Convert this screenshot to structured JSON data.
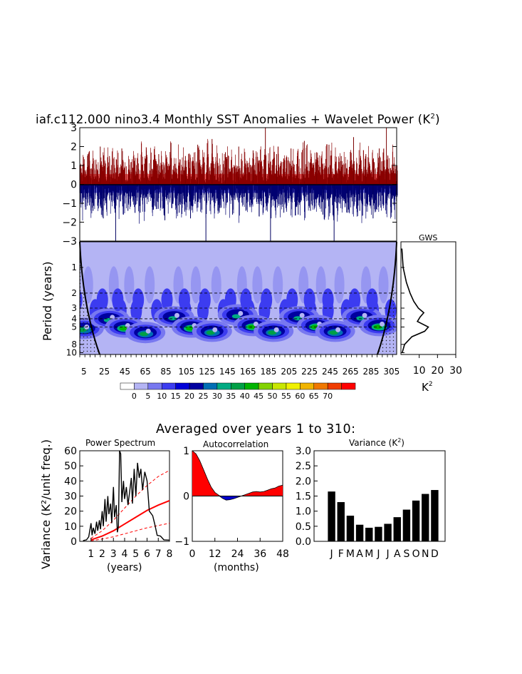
{
  "title": {
    "main": "iaf.c112.000 nino3.4 Monthly SST Anomalies + Wavelet Power (K",
    "sup": "2",
    "close": ")"
  },
  "bottom_title": "Averaged over years 1 to 310:",
  "colors": {
    "pos": "#ff0000",
    "neg": "#0000cc",
    "bg_power": "#b4b4f4",
    "sig_red": "#ff0000"
  },
  "chart_data": [
    {
      "id": "timeseries",
      "type": "line",
      "ylabel": "",
      "ylim": [
        -3,
        3
      ],
      "yticks": [
        3,
        2,
        1,
        0,
        -1,
        -2,
        -3
      ],
      "ytick_labels": [
        "3",
        "2",
        "1",
        "0",
        "−1",
        "−2",
        "−3"
      ],
      "xlim": [
        1,
        310
      ],
      "spikes": [
        {
          "x": 9,
          "v": 1.6
        },
        {
          "x": 14,
          "v": -1.4
        },
        {
          "x": 21,
          "v": 2.0
        },
        {
          "x": 24,
          "v": -1.8
        },
        {
          "x": 30,
          "v": 1.5
        },
        {
          "x": 36,
          "v": -3.0
        },
        {
          "x": 42,
          "v": 1.9
        },
        {
          "x": 48,
          "v": -1.4
        },
        {
          "x": 55,
          "v": 1.4
        },
        {
          "x": 60,
          "v": -1.5
        },
        {
          "x": 66,
          "v": 1.8
        },
        {
          "x": 73,
          "v": -1.2
        },
        {
          "x": 78,
          "v": 1.6
        },
        {
          "x": 84,
          "v": -1.9
        },
        {
          "x": 90,
          "v": 2.2
        },
        {
          "x": 98,
          "v": -1.5
        },
        {
          "x": 104,
          "v": 1.5
        },
        {
          "x": 109,
          "v": -1.8
        },
        {
          "x": 116,
          "v": 2.1
        },
        {
          "x": 124,
          "v": -3.0
        },
        {
          "x": 130,
          "v": 2.4
        },
        {
          "x": 137,
          "v": -1.5
        },
        {
          "x": 143,
          "v": 1.7
        },
        {
          "x": 150,
          "v": -1.6
        },
        {
          "x": 156,
          "v": 2.0
        },
        {
          "x": 163,
          "v": -1.4
        },
        {
          "x": 170,
          "v": 1.8
        },
        {
          "x": 176,
          "v": -1.7
        },
        {
          "x": 182,
          "v": 3.0
        },
        {
          "x": 187,
          "v": -3.0
        },
        {
          "x": 193,
          "v": 1.6
        },
        {
          "x": 200,
          "v": -1.5
        },
        {
          "x": 207,
          "v": 1.9
        },
        {
          "x": 214,
          "v": -1.6
        },
        {
          "x": 220,
          "v": 2.3
        },
        {
          "x": 226,
          "v": -1.4
        },
        {
          "x": 232,
          "v": 1.7
        },
        {
          "x": 238,
          "v": -1.6
        },
        {
          "x": 244,
          "v": 2.1
        },
        {
          "x": 249,
          "v": -3.0
        },
        {
          "x": 256,
          "v": 1.5
        },
        {
          "x": 262,
          "v": -1.5
        },
        {
          "x": 268,
          "v": 2.5
        },
        {
          "x": 274,
          "v": -1.4
        },
        {
          "x": 280,
          "v": 1.6
        },
        {
          "x": 287,
          "v": -1.8
        },
        {
          "x": 293,
          "v": 1.9
        },
        {
          "x": 300,
          "v": 3.0
        },
        {
          "x": 305,
          "v": -1.5
        }
      ]
    },
    {
      "id": "wavelet",
      "type": "heatmap",
      "ylabel": "Period (years)",
      "period_ticks": [
        "1",
        "2",
        "3",
        "4",
        "5",
        "8",
        "10"
      ],
      "period_values": [
        1,
        2,
        3,
        4,
        5,
        8,
        10
      ],
      "xtick_labels": [
        "5",
        "25",
        "45",
        "65",
        "85",
        "105",
        "125",
        "145",
        "165",
        "185",
        "205",
        "225",
        "245",
        "265",
        "285",
        "305"
      ],
      "xtick_values": [
        5,
        25,
        45,
        65,
        85,
        105,
        125,
        145,
        165,
        185,
        205,
        225,
        245,
        265,
        285,
        305
      ],
      "xlim": [
        1,
        310
      ],
      "ylim_log": [
        0.5,
        10.5
      ],
      "dashed_periods": [
        2,
        3,
        4,
        5
      ],
      "blob_centers": [
        {
          "year": 5,
          "period": 5.2,
          "power": 35
        },
        {
          "year": 30,
          "period": 4.0,
          "power": 30
        },
        {
          "year": 45,
          "period": 5.0,
          "power": 40
        },
        {
          "year": 65,
          "period": 5.8,
          "power": 35
        },
        {
          "year": 93,
          "period": 3.8,
          "power": 30
        },
        {
          "year": 110,
          "period": 5.0,
          "power": 40
        },
        {
          "year": 130,
          "period": 5.6,
          "power": 35
        },
        {
          "year": 155,
          "period": 3.6,
          "power": 30
        },
        {
          "year": 170,
          "period": 4.8,
          "power": 40
        },
        {
          "year": 190,
          "period": 5.6,
          "power": 35
        },
        {
          "year": 215,
          "period": 3.8,
          "power": 30
        },
        {
          "year": 232,
          "period": 4.8,
          "power": 40
        },
        {
          "year": 250,
          "period": 5.6,
          "power": 35
        },
        {
          "year": 276,
          "period": 3.8,
          "power": 30
        },
        {
          "year": 293,
          "period": 4.8,
          "power": 40
        }
      ]
    },
    {
      "id": "gws",
      "type": "line",
      "title": "GWS",
      "xlabel": "K",
      "xlabel_sup": "2",
      "xtick_labels": [
        "10",
        "20",
        "30"
      ],
      "xtick_values": [
        10,
        20,
        30
      ],
      "xlim": [
        0,
        30
      ],
      "points": [
        {
          "period": 0.6,
          "v": 0.5
        },
        {
          "period": 1.0,
          "v": 1.2
        },
        {
          "period": 1.5,
          "v": 3.0
        },
        {
          "period": 2.0,
          "v": 5.0
        },
        {
          "period": 2.5,
          "v": 7.0
        },
        {
          "period": 3.0,
          "v": 9.5
        },
        {
          "period": 3.4,
          "v": 12.5
        },
        {
          "period": 3.8,
          "v": 10.5
        },
        {
          "period": 4.3,
          "v": 9.0
        },
        {
          "period": 5.0,
          "v": 15.0
        },
        {
          "period": 5.6,
          "v": 13.0
        },
        {
          "period": 6.5,
          "v": 6.0
        },
        {
          "period": 8.0,
          "v": 2.0
        },
        {
          "period": 10.0,
          "v": 0.7
        }
      ]
    },
    {
      "id": "legend",
      "type": "colorbar",
      "labels": [
        "0",
        "5",
        "10",
        "15",
        "20",
        "25",
        "30",
        "35",
        "40",
        "45",
        "50",
        "55",
        "60",
        "65",
        "70"
      ],
      "colors": [
        "#ffffff",
        "#b4b4f4",
        "#7878f0",
        "#3c3cf0",
        "#0000d8",
        "#0000a0",
        "#006eb4",
        "#00aa82",
        "#00a046",
        "#00b400",
        "#82d200",
        "#c8e600",
        "#f0f000",
        "#f0b400",
        "#f07800",
        "#f03c00",
        "#ff0000"
      ]
    },
    {
      "id": "power_spectrum",
      "type": "line",
      "title": "Power Spectrum",
      "ylabel": "Variance (K²/unit freq.)",
      "xlabel": "(years)",
      "xtick_labels": [
        "1",
        "2",
        "3",
        "4",
        "5",
        "6",
        "7",
        "8"
      ],
      "xtick_values": [
        1,
        2,
        3,
        4,
        5,
        6,
        7,
        8
      ],
      "ytick_labels": [
        "0",
        "10",
        "20",
        "30",
        "40",
        "50",
        "60"
      ],
      "ytick_values": [
        0,
        10,
        20,
        30,
        40,
        50,
        60
      ],
      "xlim": [
        0,
        8
      ],
      "ylim": [
        0,
        60
      ],
      "spectrum": [
        [
          0.3,
          0.5
        ],
        [
          0.6,
          1.0
        ],
        [
          0.8,
          3.0
        ],
        [
          1.0,
          12.0
        ],
        [
          1.1,
          4.0
        ],
        [
          1.2,
          9.0
        ],
        [
          1.35,
          5.0
        ],
        [
          1.5,
          13.0
        ],
        [
          1.6,
          7.0
        ],
        [
          1.75,
          14.0
        ],
        [
          1.85,
          8.0
        ],
        [
          2.0,
          20.0
        ],
        [
          2.1,
          10.0
        ],
        [
          2.25,
          28.0
        ],
        [
          2.35,
          13.0
        ],
        [
          2.5,
          30.0
        ],
        [
          2.6,
          18.0
        ],
        [
          2.75,
          25.0
        ],
        [
          2.85,
          12.0
        ],
        [
          3.0,
          36.0
        ],
        [
          3.1,
          16.0
        ],
        [
          3.25,
          24.0
        ],
        [
          3.35,
          6.0
        ],
        [
          3.45,
          10.0
        ],
        [
          3.55,
          60.0
        ],
        [
          3.65,
          58.0
        ],
        [
          3.75,
          26.0
        ],
        [
          3.9,
          40.0
        ],
        [
          4.0,
          28.0
        ],
        [
          4.15,
          36.0
        ],
        [
          4.3,
          24.0
        ],
        [
          4.45,
          33.0
        ],
        [
          4.6,
          42.0
        ],
        [
          4.7,
          25.0
        ],
        [
          4.85,
          48.0
        ],
        [
          5.0,
          30.0
        ],
        [
          5.15,
          52.0
        ],
        [
          5.3,
          42.0
        ],
        [
          5.45,
          48.0
        ],
        [
          5.6,
          34.0
        ],
        [
          5.8,
          46.0
        ],
        [
          6.0,
          40.0
        ],
        [
          6.2,
          20.0
        ],
        [
          6.5,
          17.0
        ],
        [
          6.7,
          11.0
        ],
        [
          6.9,
          4.0
        ],
        [
          7.2,
          3.5
        ],
        [
          7.5,
          1.0
        ],
        [
          8.0,
          0.8
        ]
      ],
      "red_noise_mid": [
        [
          1.0,
          1.0
        ],
        [
          2.0,
          3.5
        ],
        [
          3.0,
          7.0
        ],
        [
          4.0,
          11.5
        ],
        [
          5.0,
          16.0
        ],
        [
          6.0,
          20.5
        ],
        [
          7.0,
          24.0
        ],
        [
          8.0,
          27.0
        ]
      ],
      "red_noise_low": [
        [
          1.0,
          0.4
        ],
        [
          2.0,
          1.5
        ],
        [
          3.0,
          3.0
        ],
        [
          4.0,
          5.0
        ],
        [
          5.0,
          7.0
        ],
        [
          6.0,
          9.0
        ],
        [
          7.0,
          10.5
        ],
        [
          8.0,
          12.0
        ]
      ],
      "red_noise_high": [
        [
          1.0,
          2.0
        ],
        [
          2.0,
          7.0
        ],
        [
          3.0,
          14.0
        ],
        [
          4.0,
          22.0
        ],
        [
          5.0,
          30.0
        ],
        [
          6.0,
          37.0
        ],
        [
          7.0,
          43.0
        ],
        [
          8.0,
          47.0
        ]
      ]
    },
    {
      "id": "autocorrelation",
      "type": "area",
      "title": "Autocorrelation",
      "xlabel": "(months)",
      "xtick_labels": [
        "0",
        "12",
        "24",
        "36",
        "48"
      ],
      "xtick_values": [
        0,
        12,
        24,
        36,
        48
      ],
      "ytick_labels": [
        "1",
        "0",
        "−1"
      ],
      "ytick_values": [
        1,
        0,
        -1
      ],
      "xlim": [
        0,
        48
      ],
      "ylim": [
        -1,
        1
      ],
      "values": [
        [
          0,
          1.0
        ],
        [
          2,
          0.93
        ],
        [
          4,
          0.78
        ],
        [
          6,
          0.58
        ],
        [
          8,
          0.38
        ],
        [
          10,
          0.2
        ],
        [
          12,
          0.08
        ],
        [
          14,
          0.02
        ],
        [
          16,
          -0.05
        ],
        [
          18,
          -0.09
        ],
        [
          20,
          -0.08
        ],
        [
          22,
          -0.06
        ],
        [
          24,
          -0.03
        ],
        [
          26,
          0.0
        ],
        [
          28,
          0.03
        ],
        [
          30,
          0.06
        ],
        [
          32,
          0.09
        ],
        [
          34,
          0.1
        ],
        [
          36,
          0.09
        ],
        [
          38,
          0.1
        ],
        [
          40,
          0.13
        ],
        [
          42,
          0.16
        ],
        [
          44,
          0.18
        ],
        [
          46,
          0.22
        ],
        [
          48,
          0.24
        ]
      ]
    },
    {
      "id": "variance",
      "type": "bar",
      "title": "Variance (K",
      "title_sup": "2",
      "title_close": ")",
      "categories": [
        "J",
        "F",
        "M",
        "A",
        "M",
        "J",
        "J",
        "A",
        "S",
        "O",
        "N",
        "D"
      ],
      "values": [
        1.65,
        1.3,
        0.85,
        0.55,
        0.45,
        0.48,
        0.58,
        0.8,
        1.05,
        1.35,
        1.57,
        1.7
      ],
      "ytick_labels": [
        "0.0",
        "0.5",
        "1.0",
        "1.5",
        "2.0",
        "2.5",
        "3.0"
      ],
      "ytick_values": [
        0.0,
        0.5,
        1.0,
        1.5,
        2.0,
        2.5,
        3.0
      ],
      "ylim": [
        0,
        3.0
      ]
    }
  ]
}
